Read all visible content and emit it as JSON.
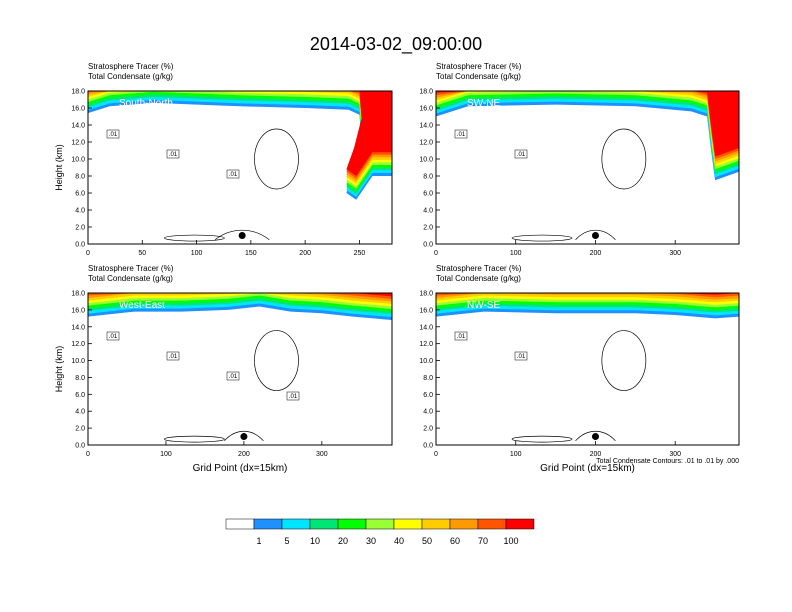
{
  "title": "2014-03-02_09:00:00",
  "colorbar": {
    "labels": [
      "1",
      "5",
      "10",
      "20",
      "30",
      "40",
      "50",
      "60",
      "70",
      "100"
    ],
    "colors": [
      "#ffffff",
      "#1e90ff",
      "#00e5ff",
      "#00e676",
      "#00ff00",
      "#9aff33",
      "#ffff00",
      "#ffcc00",
      "#ff9900",
      "#ff5500",
      "#ff0000"
    ]
  },
  "footnote": "Total Condensate Contours: .01 to .01 by .000",
  "chart_data": [
    {
      "type": "heatmap",
      "label": "South-North",
      "subtitle_1": "Stratosphere Tracer   (%)",
      "subtitle_2": "Total Condensate   (g/kg)",
      "ylabel": "Height (km)",
      "xlabel": "",
      "xlim": [
        0,
        280
      ],
      "ylim": [
        0,
        18
      ],
      "xticks": [
        0,
        50,
        100,
        150,
        200,
        250
      ],
      "yticks": [
        "0.0",
        "2.0",
        "4.0",
        "6.0",
        "8.0",
        "10.0",
        "12.0",
        "14.0",
        "16.0",
        "18.0"
      ],
      "tropopause_km": [
        [
          0,
          15.4
        ],
        [
          20,
          16.2
        ],
        [
          60,
          16.6
        ],
        [
          100,
          16.4
        ],
        [
          140,
          16.2
        ],
        [
          200,
          16.0
        ],
        [
          240,
          15.8
        ],
        [
          250,
          15.2
        ],
        [
          252,
          12.0
        ],
        [
          245,
          8.5
        ],
        [
          238,
          6.0
        ],
        [
          247,
          5.2
        ],
        [
          262,
          8.0
        ],
        [
          280,
          8.0
        ]
      ],
      "contour_labels": [
        ".01",
        ".01",
        ".01"
      ],
      "marker": {
        "x": 142,
        "y": 1.0
      }
    },
    {
      "type": "heatmap",
      "label": "SW-NE",
      "subtitle_1": "Stratosphere Tracer   (%)",
      "subtitle_2": "Total Condensate   (g/kg)",
      "ylabel": "",
      "xlabel": "",
      "xlim": [
        0,
        380
      ],
      "ylim": [
        0,
        18
      ],
      "xticks": [
        0,
        100,
        200,
        300
      ],
      "yticks": [
        "0.0",
        "2.0",
        "4.0",
        "6.0",
        "8.0",
        "10.0",
        "12.0",
        "14.0",
        "16.0",
        "18.0"
      ],
      "tropopause_km": [
        [
          0,
          15.0
        ],
        [
          40,
          16.2
        ],
        [
          150,
          16.4
        ],
        [
          250,
          16.2
        ],
        [
          320,
          15.6
        ],
        [
          340,
          15.0
        ],
        [
          345,
          11.0
        ],
        [
          350,
          7.5
        ],
        [
          380,
          8.5
        ]
      ],
      "contour_labels": [
        ".01",
        ".01"
      ],
      "marker": {
        "x": 200,
        "y": 1.0
      }
    },
    {
      "type": "heatmap",
      "label": "West-East",
      "subtitle_1": "Stratosphere Tracer   (%)",
      "subtitle_2": "Total Condensate   (g/kg)",
      "ylabel": "Height (km)",
      "xlabel": "Grid Point (dx=15km)",
      "xlim": [
        0,
        390
      ],
      "ylim": [
        0,
        18
      ],
      "xticks": [
        0,
        100,
        200,
        300
      ],
      "yticks": [
        "0.0",
        "2.0",
        "4.0",
        "6.0",
        "8.0",
        "10.0",
        "12.0",
        "14.0",
        "16.0",
        "18.0"
      ],
      "tropopause_km": [
        [
          0,
          15.2
        ],
        [
          60,
          15.8
        ],
        [
          120,
          15.8
        ],
        [
          180,
          16.0
        ],
        [
          220,
          16.4
        ],
        [
          260,
          15.8
        ],
        [
          300,
          15.6
        ],
        [
          340,
          15.2
        ],
        [
          390,
          14.8
        ]
      ],
      "contour_labels": [
        ".01",
        ".01",
        ".01",
        ".01"
      ],
      "marker": {
        "x": 200,
        "y": 1.0
      }
    },
    {
      "type": "heatmap",
      "label": "NW-SE",
      "subtitle_1": "Stratosphere Tracer   (%)",
      "subtitle_2": "Total Condensate   (g/kg)",
      "ylabel": "",
      "xlabel": "Grid Point (dx=15km)",
      "xlim": [
        0,
        380
      ],
      "ylim": [
        0,
        18
      ],
      "xticks": [
        0,
        100,
        200,
        300
      ],
      "yticks": [
        "0.0",
        "2.0",
        "4.0",
        "6.0",
        "8.0",
        "10.0",
        "12.0",
        "14.0",
        "16.0",
        "18.0"
      ],
      "tropopause_km": [
        [
          0,
          15.2
        ],
        [
          60,
          15.8
        ],
        [
          150,
          15.6
        ],
        [
          250,
          15.6
        ],
        [
          300,
          15.4
        ],
        [
          350,
          15.0
        ],
        [
          380,
          15.2
        ]
      ],
      "contour_labels": [
        ".01",
        ".01"
      ],
      "marker": {
        "x": 200,
        "y": 1.0
      }
    }
  ]
}
